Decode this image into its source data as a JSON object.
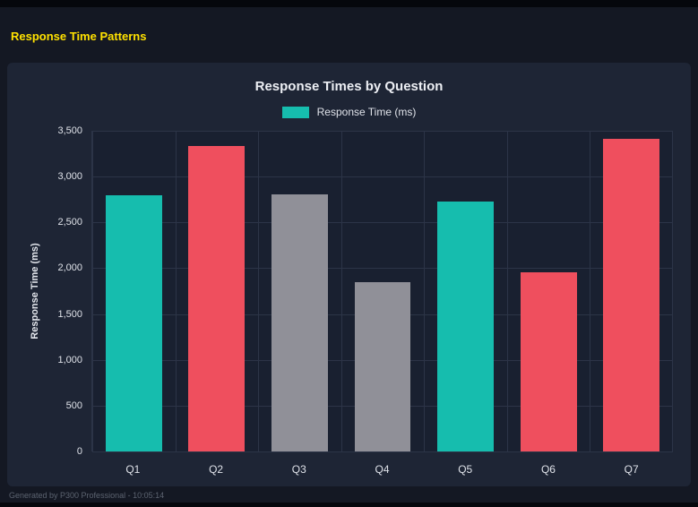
{
  "page": {
    "title": "Response Time Patterns",
    "footer": "Generated by P300 Professional - 10:05:14"
  },
  "colors": {
    "background": "#141823",
    "panel": "#1e2535",
    "plot_background": "#192030",
    "gridline": "#2c3447",
    "teal": "#16bdae",
    "red": "#ef4f5e",
    "gray": "#909098",
    "accent_yellow": "#ffe100"
  },
  "chart_data": {
    "type": "bar",
    "title": "Response Times by Question",
    "legend": [
      {
        "label": "Response Time (ms)",
        "color": "#16bdae"
      }
    ],
    "legend_position": "top",
    "categories": [
      "Q1",
      "Q2",
      "Q3",
      "Q4",
      "Q5",
      "Q6",
      "Q7"
    ],
    "values": [
      2800,
      3330,
      2810,
      1850,
      2730,
      1960,
      3410
    ],
    "bar_colors": [
      "#16bdae",
      "#ef4f5e",
      "#909098",
      "#909098",
      "#16bdae",
      "#ef4f5e",
      "#ef4f5e"
    ],
    "xlabel": "",
    "ylabel": "Response Time (ms)",
    "ylim": [
      0,
      3500
    ],
    "yticks": [
      0,
      500,
      1000,
      1500,
      2000,
      2500,
      3000,
      3500
    ],
    "ytick_labels": [
      "0",
      "500",
      "1,000",
      "1,500",
      "2,000",
      "2,500",
      "3,000",
      "3,500"
    ],
    "grid": true
  }
}
